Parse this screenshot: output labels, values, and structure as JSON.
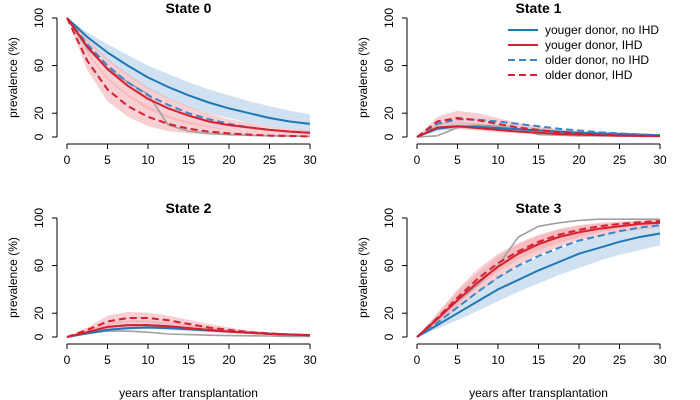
{
  "colors": {
    "young": "#1f77b4",
    "old_blue": "#3a86c8",
    "ihd": "#d62031",
    "band_blue": "#a9cbe8",
    "band_red": "#f2a7ad",
    "observed": "#a0a0a0"
  },
  "legend": {
    "placement": "top-right of State 1 panel",
    "entries": [
      {
        "label": "youger donor, no IHD",
        "color": "#1f77b4",
        "dash": "solid"
      },
      {
        "label": "youger donor, IHD",
        "color": "#d62031",
        "dash": "solid"
      },
      {
        "label": "older donor, no IHD",
        "color": "#3a86c8",
        "dash": "dashed"
      },
      {
        "label": "older donor, IHD",
        "color": "#d62031",
        "dash": "dashed"
      }
    ]
  },
  "chart_data": [
    {
      "type": "line",
      "title": "State 0",
      "xlabel": "",
      "ylabel": "prevalence (%)",
      "xlim": [
        0,
        30
      ],
      "ylim": [
        0,
        100
      ],
      "xticks": [
        0,
        5,
        10,
        15,
        20,
        25,
        30
      ],
      "yticks": [
        0,
        20,
        60,
        100
      ],
      "x": [
        0,
        2.5,
        5,
        7.5,
        10,
        12.5,
        15,
        17.5,
        20,
        22.5,
        25,
        27.5,
        30
      ],
      "series": [
        {
          "key": "yn",
          "values": [
            100,
            84,
            71,
            60,
            50,
            42,
            35,
            29,
            24,
            20,
            16,
            13,
            11
          ],
          "band_lo": [
            100,
            80,
            64,
            51,
            40,
            32,
            25,
            20,
            16,
            12,
            9,
            7,
            5
          ],
          "band_hi": [
            100,
            88,
            78,
            69,
            60,
            53,
            46,
            40,
            35,
            30,
            26,
            22,
            19
          ]
        },
        {
          "key": "yi",
          "values": [
            100,
            76,
            57,
            43,
            32,
            24,
            18,
            13,
            10,
            8,
            6,
            4.5,
            3.5
          ],
          "band_lo": [
            100,
            70,
            48,
            34,
            23,
            16,
            11,
            8,
            6,
            4,
            3,
            2,
            1.5
          ],
          "band_hi": [
            100,
            82,
            66,
            53,
            42,
            33,
            26,
            20,
            15,
            12,
            9,
            7,
            5.5
          ]
        },
        {
          "key": "on",
          "values": [
            100,
            78,
            60,
            46,
            35,
            27,
            20,
            15,
            11,
            8,
            6,
            4.5,
            3.5
          ]
        },
        {
          "key": "oi",
          "values": [
            100,
            64,
            40,
            26,
            17,
            11,
            7,
            4.5,
            3,
            2,
            1.2,
            0.8,
            0.5
          ],
          "band_lo": [
            100,
            56,
            30,
            17,
            9,
            5,
            3,
            2,
            1,
            0.5,
            0.3,
            0.2,
            0.1
          ],
          "band_hi": [
            100,
            72,
            50,
            36,
            26,
            18,
            13,
            9,
            6,
            4,
            3,
            2,
            1.5
          ]
        },
        {
          "key": "obs",
          "values": [
            100,
            74,
            58,
            46,
            36,
            10,
            5,
            3,
            2,
            1.5,
            1,
            0.8,
            0.5
          ]
        }
      ]
    },
    {
      "type": "line",
      "title": "State 1",
      "xlabel": "",
      "ylabel": "prevalence (%)",
      "xlim": [
        0,
        30
      ],
      "ylim": [
        0,
        100
      ],
      "xticks": [
        0,
        5,
        10,
        15,
        20,
        25,
        30
      ],
      "yticks": [
        0,
        20,
        60,
        100
      ],
      "x": [
        0,
        2.5,
        5,
        7.5,
        10,
        12.5,
        15,
        17.5,
        20,
        22.5,
        25,
        27.5,
        30
      ],
      "series": [
        {
          "key": "yn",
          "values": [
            0,
            7,
            9,
            8.5,
            7.5,
            6.5,
            5.5,
            4.5,
            3.5,
            3,
            2.5,
            2,
            1.5
          ],
          "band_lo": [
            0,
            5,
            7,
            6.5,
            5.5,
            4.5,
            3.5,
            3,
            2.5,
            2,
            1.5,
            1,
            1
          ],
          "band_hi": [
            0,
            10,
            12,
            11.5,
            10.5,
            9,
            8,
            6.5,
            5.5,
            4.5,
            4,
            3,
            2.5
          ]
        },
        {
          "key": "yi",
          "values": [
            0,
            8,
            9,
            7.5,
            6,
            4.5,
            3.5,
            2.5,
            2,
            1.5,
            1,
            1,
            0.8
          ],
          "band_lo": [
            0,
            6,
            6.5,
            5.5,
            4,
            3,
            2.2,
            1.6,
            1.2,
            0.9,
            0.7,
            0.5,
            0.4
          ],
          "band_hi": [
            0,
            12,
            13,
            11,
            9,
            7,
            5.5,
            4,
            3,
            2.5,
            2,
            1.5,
            1.2
          ]
        },
        {
          "key": "on",
          "values": [
            0,
            11,
            15,
            14.5,
            13,
            11,
            9,
            7,
            5.5,
            4,
            3,
            2.2,
            1.5
          ]
        },
        {
          "key": "oi",
          "values": [
            0,
            13,
            16,
            14,
            11,
            8,
            6,
            4,
            3,
            2,
            1.5,
            1,
            0.7
          ],
          "band_lo": [
            0,
            10,
            12,
            10,
            7.5,
            5.5,
            4,
            2.5,
            1.8,
            1.2,
            0.8,
            0.6,
            0.4
          ],
          "band_hi": [
            0,
            17,
            22,
            20,
            16,
            12,
            9,
            6.5,
            4.5,
            3.2,
            2.3,
            1.6,
            1.1
          ]
        },
        {
          "key": "obs",
          "values": [
            0,
            1,
            8,
            10,
            9,
            7,
            2,
            1.5,
            1,
            1,
            0.8,
            0.5,
            0.5
          ]
        }
      ]
    },
    {
      "type": "line",
      "title": "State 2",
      "xlabel": "",
      "ylabel": "prevalence (%)",
      "xlim": [
        0,
        30
      ],
      "ylim": [
        0,
        100
      ],
      "xticks": [
        0,
        5,
        10,
        15,
        20,
        25,
        30
      ],
      "yticks": [
        0,
        20,
        60,
        100
      ],
      "x": [
        0,
        2.5,
        5,
        7.5,
        10,
        12.5,
        15,
        17.5,
        20,
        22.5,
        25,
        27.5,
        30
      ],
      "series": [
        {
          "key": "yn",
          "values": [
            0,
            3,
            6,
            7.5,
            8,
            7.5,
            6.5,
            5.5,
            4.5,
            3.5,
            2.8,
            2.2,
            1.7
          ],
          "band_lo": [
            0,
            2,
            4.5,
            6,
            6.5,
            6,
            5,
            4.2,
            3.4,
            2.7,
            2.1,
            1.6,
            1.2
          ],
          "band_hi": [
            0,
            4,
            8,
            9.5,
            10,
            9.5,
            8.5,
            7,
            5.8,
            4.6,
            3.6,
            2.8,
            2.2
          ]
        },
        {
          "key": "yi",
          "values": [
            0,
            4,
            8.5,
            10,
            10,
            9,
            7.5,
            6,
            4.5,
            3.5,
            2.5,
            2,
            1.5
          ],
          "band_lo": [
            0,
            3,
            6.5,
            7.5,
            7.5,
            6.5,
            5.5,
            4.3,
            3.2,
            2.4,
            1.8,
            1.3,
            1
          ],
          "band_hi": [
            0,
            6,
            12,
            14,
            14,
            12.5,
            10.5,
            8.5,
            6.5,
            5,
            3.8,
            2.9,
            2.2
          ]
        },
        {
          "key": "on",
          "values": [
            0,
            4,
            8.5,
            10,
            10,
            9,
            7.5,
            6,
            4.5,
            3.5,
            2.5,
            2,
            1.5
          ]
        },
        {
          "key": "oi",
          "values": [
            0,
            6,
            13,
            16,
            16,
            14,
            11,
            8,
            6,
            4,
            3,
            2,
            1.5
          ],
          "band_lo": [
            0,
            4.5,
            10,
            12,
            12,
            10,
            8,
            6,
            4.3,
            3,
            2.1,
            1.5,
            1
          ],
          "band_hi": [
            0,
            8,
            18,
            21,
            20.5,
            18,
            14.5,
            11,
            8,
            5.5,
            4,
            2.8,
            2
          ]
        },
        {
          "key": "obs",
          "values": [
            0,
            3,
            5,
            5,
            4,
            2.5,
            2,
            1.5,
            1.2,
            1,
            0.8,
            0.5,
            0.5
          ]
        }
      ]
    },
    {
      "type": "line",
      "title": "State 3",
      "xlabel": "years after transplantation",
      "ylabel": "prevalence (%)",
      "xlim": [
        0,
        30
      ],
      "ylim": [
        0,
        100
      ],
      "xticks": [
        0,
        5,
        10,
        15,
        20,
        25,
        30
      ],
      "yticks": [
        0,
        20,
        60,
        100
      ],
      "x": [
        0,
        2.5,
        5,
        7.5,
        10,
        12.5,
        15,
        17.5,
        20,
        22.5,
        25,
        27.5,
        30
      ],
      "series": [
        {
          "key": "yn",
          "values": [
            0,
            10,
            20,
            30,
            40,
            48,
            56,
            63,
            70,
            75,
            80,
            84,
            87
          ],
          "band_lo": [
            0,
            7,
            14,
            22,
            30,
            38,
            45,
            52,
            58,
            64,
            69,
            73,
            77
          ],
          "band_hi": [
            0,
            13,
            26,
            38,
            50,
            59,
            67,
            74,
            80,
            85,
            89,
            92,
            94
          ]
        },
        {
          "key": "yi",
          "values": [
            0,
            15,
            31,
            46,
            59,
            70,
            78,
            84,
            88,
            91,
            93,
            95,
            96
          ],
          "band_lo": [
            0,
            11,
            24,
            37,
            49,
            60,
            69,
            76,
            81,
            85,
            88,
            90,
            92
          ],
          "band_hi": [
            0,
            19,
            38,
            54,
            68,
            78,
            85,
            90,
            93,
            95,
            96,
            97,
            98
          ]
        },
        {
          "key": "on",
          "values": [
            0,
            12,
            25,
            38,
            50,
            60,
            68,
            75,
            81,
            85,
            89,
            92,
            94
          ]
        },
        {
          "key": "oi",
          "values": [
            0,
            16,
            33,
            49,
            62,
            72,
            80,
            86,
            90,
            93,
            95,
            96.5,
            97.5
          ],
          "band_lo": [
            0,
            12,
            27,
            42,
            55,
            65,
            73,
            79,
            84,
            88,
            91,
            93,
            95
          ],
          "band_hi": [
            0,
            20,
            40,
            57,
            70,
            79,
            86,
            91,
            94,
            96,
            97,
            98,
            99
          ]
        },
        {
          "key": "obs",
          "values": [
            0,
            16,
            30,
            44,
            60,
            84,
            93,
            96,
            98,
            99,
            99,
            99,
            99
          ]
        }
      ]
    }
  ]
}
